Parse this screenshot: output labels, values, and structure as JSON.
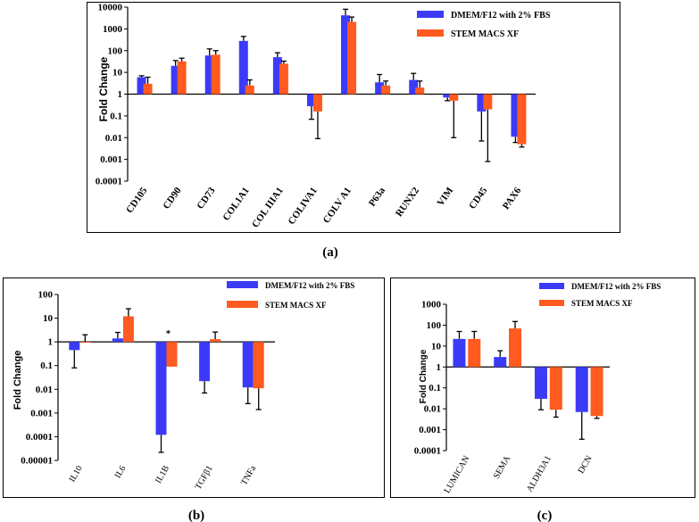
{
  "colors": {
    "series1": "#3b3bf7",
    "series2": "#ff5a1f"
  },
  "chart_data": [
    {
      "panel": "(a)",
      "type": "bar",
      "yscale": "log",
      "ylabel": "Fold Change",
      "ylim": [
        0.0001,
        10000
      ],
      "yticks": [
        "0.0001",
        "0.001",
        "0.01",
        "0.1",
        "1",
        "10",
        "100",
        "1000",
        "10000"
      ],
      "categories": [
        "CD105",
        "CD90",
        "CD73",
        "COL1A1",
        "COL IIIA1",
        "COLIVA1",
        "COLV A1",
        "P63a",
        "RUNX2",
        "VIM",
        "CD45",
        "PAX6"
      ],
      "series": [
        {
          "name": "DMEM/F12 with 2% FBS",
          "values": [
            6,
            20,
            60,
            280,
            50,
            0.28,
            4200,
            3.5,
            4.5,
            0.7,
            0.16,
            0.011
          ],
          "err": [
            7,
            35,
            120,
            450,
            80,
            0.07,
            8000,
            8,
            9,
            0.5,
            0.007,
            0.006
          ]
        },
        {
          "name": "STEM MACS XF",
          "values": [
            3,
            32,
            65,
            2.5,
            25,
            0.16,
            2100,
            2.5,
            2,
            0.5,
            0.2,
            0.005
          ],
          "err": [
            6,
            45,
            100,
            4.5,
            33,
            0.009,
            3500,
            4,
            4,
            0.01,
            0.0008,
            0.0037
          ]
        }
      ]
    },
    {
      "panel": "(b)",
      "type": "bar",
      "yscale": "log",
      "ylabel": "Fold Change",
      "ylim": [
        1e-05,
        100
      ],
      "yticks": [
        "0.00001",
        "0.0001",
        "0.001",
        "0.01",
        "0.1",
        "1",
        "10",
        "100"
      ],
      "categories": [
        "IL10",
        "IL6",
        "IL1B",
        "TGFβ1",
        "TNFa"
      ],
      "annotation": {
        "category": "IL1B",
        "text": "*"
      },
      "series": [
        {
          "name": "DMEM/F12 with 2% FBS",
          "values": [
            0.45,
            1.4,
            0.00012,
            0.022,
            0.012
          ],
          "err": [
            0.08,
            2.5,
            2.2e-05,
            0.007,
            0.0025
          ]
        },
        {
          "name": "STEM MACS XF",
          "values": [
            1,
            12,
            0.09,
            1.3,
            0.011
          ],
          "err": [
            2,
            25,
            0.1,
            2.6,
            0.0014
          ]
        }
      ]
    },
    {
      "panel": "(c)",
      "type": "bar",
      "yscale": "log",
      "ylabel": "Fold Change",
      "ylim": [
        0.0001,
        1000
      ],
      "yticks": [
        "0.0001",
        "0.001",
        "0.01",
        "0.1",
        "1",
        "10",
        "100",
        "1000"
      ],
      "categories": [
        "LUMICAN",
        "SEMA",
        "ALDH3A1",
        "DCN"
      ],
      "series": [
        {
          "name": "DMEM/F12 with 2% FBS",
          "values": [
            22,
            3,
            0.03,
            0.007
          ],
          "err": [
            50,
            6,
            0.009,
            0.00035
          ]
        },
        {
          "name": "STEM MACS XF",
          "values": [
            22,
            70,
            0.009,
            0.0045
          ],
          "err": [
            50,
            150,
            0.004,
            0.0035
          ]
        }
      ]
    }
  ]
}
